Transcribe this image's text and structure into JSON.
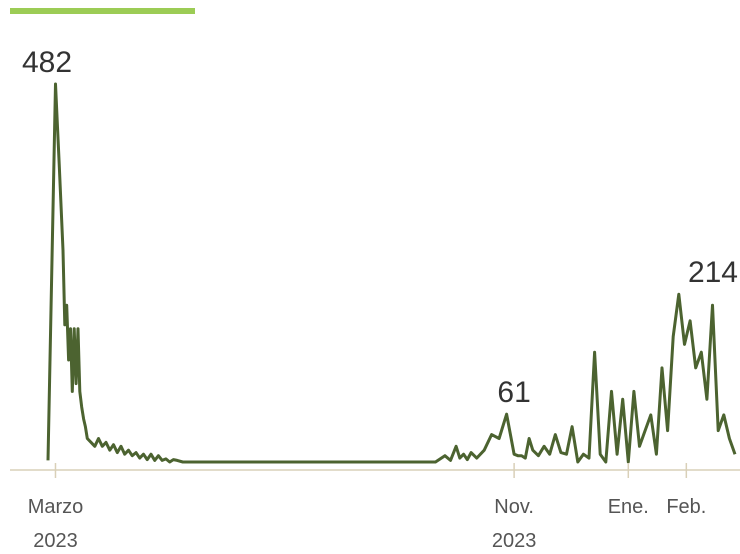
{
  "colors": {
    "line": "#4c6330",
    "accent_bar": "#9ccc55",
    "axis": "#d9d0b8",
    "text": "#333333"
  },
  "chart_data": {
    "type": "line",
    "title": "",
    "xlabel": "",
    "ylabel": "",
    "ylim": [
      0,
      482
    ],
    "grid": false,
    "x_ticks": [
      {
        "date": "2023-03-01",
        "label_line1": "Marzo",
        "label_line2": "2023"
      },
      {
        "date": "2023-11-01",
        "label_line1": "Nov.",
        "label_line2": "2023"
      },
      {
        "date": "2024-01-01",
        "label_line1": "Ene.",
        "label_line2": ""
      },
      {
        "date": "2024-02-01",
        "label_line1": "Feb.",
        "label_line2": ""
      }
    ],
    "annotations": [
      {
        "date": "2023-03-01",
        "value": 482,
        "text": "482"
      },
      {
        "date": "2023-11-01",
        "value": 61,
        "text": "61"
      },
      {
        "date": "2024-02-15",
        "value": 214,
        "text": "214"
      }
    ],
    "series": [
      {
        "name": "",
        "x": [
          "2023-02-25",
          "2023-03-01",
          "2023-03-03",
          "2023-03-05",
          "2023-03-06",
          "2023-03-07",
          "2023-03-08",
          "2023-03-09",
          "2023-03-10",
          "2023-03-11",
          "2023-03-12",
          "2023-03-13",
          "2023-03-14",
          "2023-03-15",
          "2023-03-16",
          "2023-03-17",
          "2023-03-18",
          "2023-03-20",
          "2023-03-22",
          "2023-03-24",
          "2023-03-26",
          "2023-03-28",
          "2023-03-30",
          "2023-04-01",
          "2023-04-03",
          "2023-04-05",
          "2023-04-07",
          "2023-04-09",
          "2023-04-11",
          "2023-04-13",
          "2023-04-15",
          "2023-04-17",
          "2023-04-19",
          "2023-04-21",
          "2023-04-23",
          "2023-04-25",
          "2023-04-27",
          "2023-04-29",
          "2023-05-01",
          "2023-05-03",
          "2023-05-05",
          "2023-05-08",
          "2023-05-15",
          "2023-06-01",
          "2023-07-01",
          "2023-08-01",
          "2023-09-01",
          "2023-09-20",
          "2023-09-25",
          "2023-09-28",
          "2023-10-01",
          "2023-10-03",
          "2023-10-05",
          "2023-10-07",
          "2023-10-09",
          "2023-10-12",
          "2023-10-16",
          "2023-10-20",
          "2023-10-24",
          "2023-10-28",
          "2023-11-01",
          "2023-11-03",
          "2023-11-05",
          "2023-11-07",
          "2023-11-09",
          "2023-11-11",
          "2023-11-14",
          "2023-11-17",
          "2023-11-20",
          "2023-11-23",
          "2023-11-26",
          "2023-11-29",
          "2023-12-02",
          "2023-12-05",
          "2023-12-08",
          "2023-12-11",
          "2023-12-14",
          "2023-12-17",
          "2023-12-20",
          "2023-12-23",
          "2023-12-26",
          "2023-12-29",
          "2024-01-01",
          "2024-01-04",
          "2024-01-07",
          "2024-01-10",
          "2024-01-13",
          "2024-01-16",
          "2024-01-19",
          "2024-01-22",
          "2024-01-25",
          "2024-01-28",
          "2024-01-31",
          "2024-02-03",
          "2024-02-06",
          "2024-02-09",
          "2024-02-12",
          "2024-02-15",
          "2024-02-18",
          "2024-02-21",
          "2024-02-24",
          "2024-02-27"
        ],
        "values": [
          2,
          482,
          380,
          270,
          175,
          200,
          130,
          170,
          90,
          170,
          100,
          170,
          90,
          70,
          55,
          45,
          30,
          25,
          20,
          30,
          20,
          25,
          15,
          22,
          12,
          20,
          10,
          15,
          8,
          12,
          5,
          10,
          3,
          10,
          2,
          8,
          2,
          4,
          0,
          3,
          2,
          0,
          0,
          0,
          0,
          0,
          0,
          0,
          8,
          2,
          20,
          5,
          10,
          3,
          12,
          5,
          15,
          35,
          30,
          61,
          10,
          8,
          8,
          5,
          30,
          15,
          8,
          20,
          10,
          35,
          12,
          10,
          45,
          0,
          10,
          5,
          140,
          10,
          0,
          90,
          10,
          80,
          0,
          90,
          20,
          40,
          60,
          10,
          120,
          40,
          160,
          214,
          150,
          180,
          120,
          140,
          80,
          200,
          40,
          60,
          30,
          10
        ]
      }
    ]
  }
}
